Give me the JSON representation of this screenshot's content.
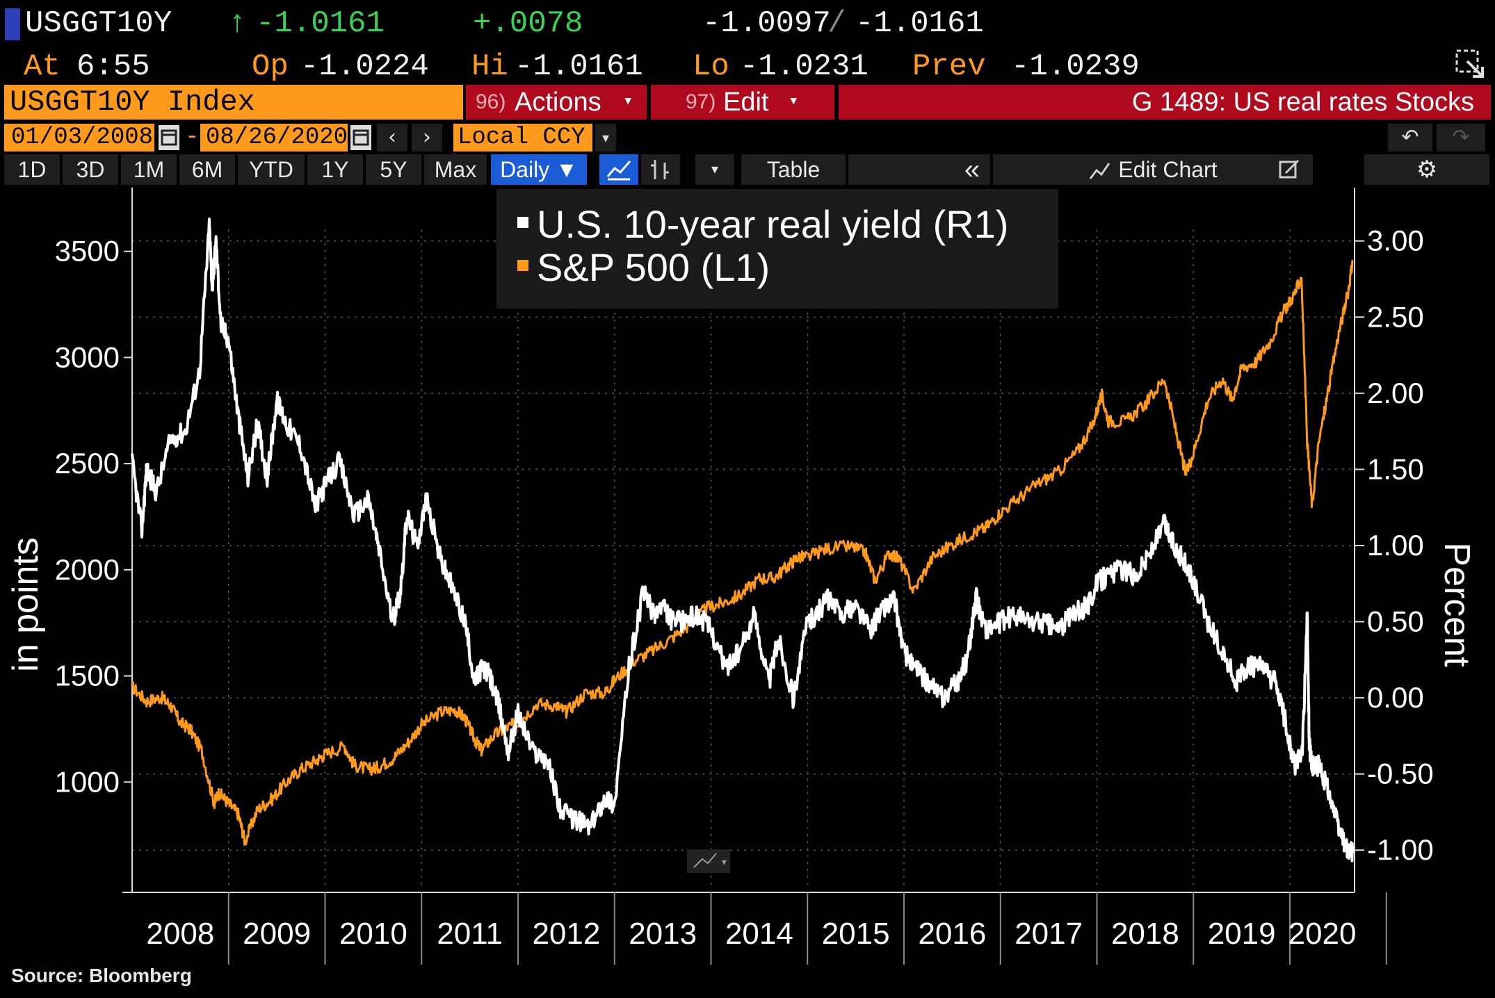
{
  "quote": {
    "ticker": "USGGT10Y",
    "arrow": "↑",
    "last": "-1.0161",
    "change": "+.0078",
    "bid": "-1.0097",
    "separator": "/",
    "ask": "-1.0161",
    "at_label": "At",
    "time": "6:55",
    "open_label": "Op",
    "open": "-1.0224",
    "high_label": "Hi",
    "high": "-1.0161",
    "low_label": "Lo",
    "low": "-1.0231",
    "prev_label": "Prev",
    "prev": "-1.0239"
  },
  "toolbar": {
    "security": "USGGT10Y Index",
    "actions_num": "96)",
    "actions_label": "Actions",
    "edit_num": "97)",
    "edit_label": "Edit",
    "graph_title": "G 1489: US real rates Stocks",
    "start_date": "01/03/2008",
    "date_sep": "-",
    "end_date": "08/26/2020",
    "currency": "Local CCY",
    "periods": [
      "1D",
      "3D",
      "1M",
      "6M",
      "YTD",
      "1Y",
      "5Y",
      "Max"
    ],
    "frequency": "Daily",
    "table_label": "Table",
    "edit_chart_label": "Edit Chart"
  },
  "colors": {
    "accent_orange": "#ff9a1c",
    "header_red": "#b00a1e",
    "selected_blue": "#1a5bd6",
    "series_white": "#ffffff",
    "series_orange": "#ff9a1c"
  },
  "source": "Source: Bloomberg",
  "chart_data": {
    "type": "line",
    "legend": {
      "placement": "top-center"
    },
    "x_tick_labels": [
      "2008",
      "2009",
      "2010",
      "2011",
      "2012",
      "2013",
      "2014",
      "2015",
      "2016",
      "2017",
      "2018",
      "2019",
      "2020"
    ],
    "xlim": [
      2008.0,
      2020.67
    ],
    "left_axis": {
      "label": "in points",
      "ticks": [
        1000,
        1500,
        2000,
        2500,
        3000,
        3500
      ],
      "tick_labels": [
        "1000",
        "1500",
        "2000",
        "2500",
        "3000",
        "3500"
      ],
      "ylim": [
        500,
        3800
      ]
    },
    "right_axis": {
      "label": "Percent",
      "ticks": [
        -1.0,
        -0.5,
        0.0,
        0.5,
        1.0,
        1.5,
        2.0,
        2.5,
        3.0
      ],
      "tick_labels": [
        "-1.00",
        "-0.50",
        "0.00",
        "0.50",
        "1.00",
        "1.50",
        "2.00",
        "2.50",
        "3.00"
      ],
      "ylim": [
        -1.25,
        3.35
      ]
    },
    "grid": true,
    "series": [
      {
        "name": "U.S. 10-year real yield (R1)",
        "axis": "right",
        "color": "#ffffff",
        "x": [
          2008.0,
          2008.1,
          2008.15,
          2008.25,
          2008.4,
          2008.55,
          2008.7,
          2008.8,
          2008.83,
          2008.87,
          2008.92,
          2009.0,
          2009.1,
          2009.2,
          2009.3,
          2009.4,
          2009.5,
          2009.6,
          2009.75,
          2009.9,
          2010.0,
          2010.15,
          2010.3,
          2010.45,
          2010.55,
          2010.7,
          2010.78,
          2010.85,
          2010.95,
          2011.05,
          2011.2,
          2011.3,
          2011.45,
          2011.55,
          2011.62,
          2011.7,
          2011.8,
          2011.9,
          2012.0,
          2012.15,
          2012.3,
          2012.45,
          2012.6,
          2012.75,
          2012.9,
          2013.0,
          2013.15,
          2013.3,
          2013.4,
          2013.5,
          2013.6,
          2013.7,
          2013.85,
          2014.0,
          2014.15,
          2014.3,
          2014.45,
          2014.6,
          2014.7,
          2014.85,
          2015.0,
          2015.1,
          2015.2,
          2015.35,
          2015.5,
          2015.65,
          2015.8,
          2015.9,
          2016.0,
          2016.1,
          2016.25,
          2016.4,
          2016.55,
          2016.65,
          2016.75,
          2016.85,
          2017.0,
          2017.15,
          2017.3,
          2017.45,
          2017.6,
          2017.75,
          2017.9,
          2018.0,
          2018.1,
          2018.25,
          2018.4,
          2018.55,
          2018.7,
          2018.8,
          2018.9,
          2019.0,
          2019.15,
          2019.3,
          2019.45,
          2019.55,
          2019.7,
          2019.85,
          2019.95,
          2020.05,
          2020.13,
          2020.18,
          2020.2,
          2020.23,
          2020.3,
          2020.4,
          2020.5,
          2020.6,
          2020.65
        ],
        "y": [
          1.55,
          1.1,
          1.5,
          1.35,
          1.7,
          1.75,
          2.15,
          3.1,
          2.7,
          3.0,
          2.45,
          2.35,
          1.85,
          1.45,
          1.8,
          1.45,
          1.95,
          1.8,
          1.65,
          1.25,
          1.4,
          1.55,
          1.2,
          1.3,
          1.0,
          0.5,
          0.7,
          1.2,
          1.0,
          1.3,
          0.9,
          0.75,
          0.5,
          0.1,
          0.2,
          0.15,
          -0.05,
          -0.35,
          -0.1,
          -0.35,
          -0.4,
          -0.75,
          -0.8,
          -0.85,
          -0.65,
          -0.7,
          0.2,
          0.7,
          0.55,
          0.6,
          0.5,
          0.5,
          0.55,
          0.45,
          0.2,
          0.3,
          0.55,
          0.1,
          0.4,
          0.0,
          0.5,
          0.55,
          0.65,
          0.55,
          0.6,
          0.45,
          0.6,
          0.65,
          0.3,
          0.2,
          0.1,
          0.0,
          0.1,
          0.25,
          0.65,
          0.45,
          0.5,
          0.55,
          0.5,
          0.5,
          0.45,
          0.55,
          0.6,
          0.75,
          0.8,
          0.85,
          0.8,
          0.95,
          1.15,
          1.0,
          0.9,
          0.75,
          0.5,
          0.3,
          0.1,
          0.2,
          0.2,
          0.1,
          -0.15,
          -0.45,
          -0.35,
          0.55,
          -0.3,
          -0.45,
          -0.45,
          -0.6,
          -0.85,
          -1.0,
          -1.02
        ]
      },
      {
        "name": "S&P 500 (L1)",
        "axis": "left",
        "color": "#ff9a1c",
        "x": [
          2008.0,
          2008.15,
          2008.3,
          2008.4,
          2008.5,
          2008.6,
          2008.72,
          2008.85,
          2008.9,
          2009.0,
          2009.1,
          2009.17,
          2009.3,
          2009.45,
          2009.6,
          2009.75,
          2009.9,
          2010.0,
          2010.2,
          2010.3,
          2010.45,
          2010.55,
          2010.7,
          2010.85,
          2011.0,
          2011.2,
          2011.35,
          2011.45,
          2011.55,
          2011.62,
          2011.75,
          2011.9,
          2012.0,
          2012.2,
          2012.4,
          2012.5,
          2012.7,
          2012.9,
          2013.0,
          2013.2,
          2013.4,
          2013.6,
          2013.8,
          2013.95,
          2014.1,
          2014.3,
          2014.5,
          2014.65,
          2014.8,
          2014.9,
          2015.0,
          2015.2,
          2015.45,
          2015.6,
          2015.7,
          2015.85,
          2015.95,
          2016.1,
          2016.3,
          2016.5,
          2016.7,
          2016.85,
          2017.0,
          2017.2,
          2017.4,
          2017.6,
          2017.8,
          2017.95,
          2018.05,
          2018.12,
          2018.3,
          2018.5,
          2018.7,
          2018.82,
          2018.92,
          2019.0,
          2019.15,
          2019.3,
          2019.4,
          2019.5,
          2019.65,
          2019.8,
          2019.95,
          2020.05,
          2020.12,
          2020.18,
          2020.23,
          2020.3,
          2020.4,
          2020.5,
          2020.6,
          2020.65
        ],
        "y": [
          1450,
          1380,
          1400,
          1360,
          1280,
          1250,
          1150,
          900,
          950,
          900,
          850,
          720,
          870,
          920,
          1000,
          1060,
          1100,
          1130,
          1170,
          1080,
          1060,
          1070,
          1110,
          1180,
          1270,
          1330,
          1340,
          1300,
          1200,
          1150,
          1220,
          1260,
          1280,
          1370,
          1360,
          1330,
          1420,
          1420,
          1480,
          1570,
          1620,
          1680,
          1750,
          1820,
          1840,
          1880,
          1960,
          1960,
          2020,
          2060,
          2060,
          2100,
          2110,
          2080,
          1950,
          2080,
          2050,
          1900,
          2060,
          2120,
          2170,
          2200,
          2270,
          2340,
          2410,
          2460,
          2560,
          2680,
          2820,
          2700,
          2700,
          2780,
          2900,
          2650,
          2450,
          2550,
          2800,
          2900,
          2800,
          2950,
          2980,
          3080,
          3230,
          3300,
          3380,
          2600,
          2300,
          2600,
          2850,
          3100,
          3300,
          3450
        ]
      }
    ]
  }
}
